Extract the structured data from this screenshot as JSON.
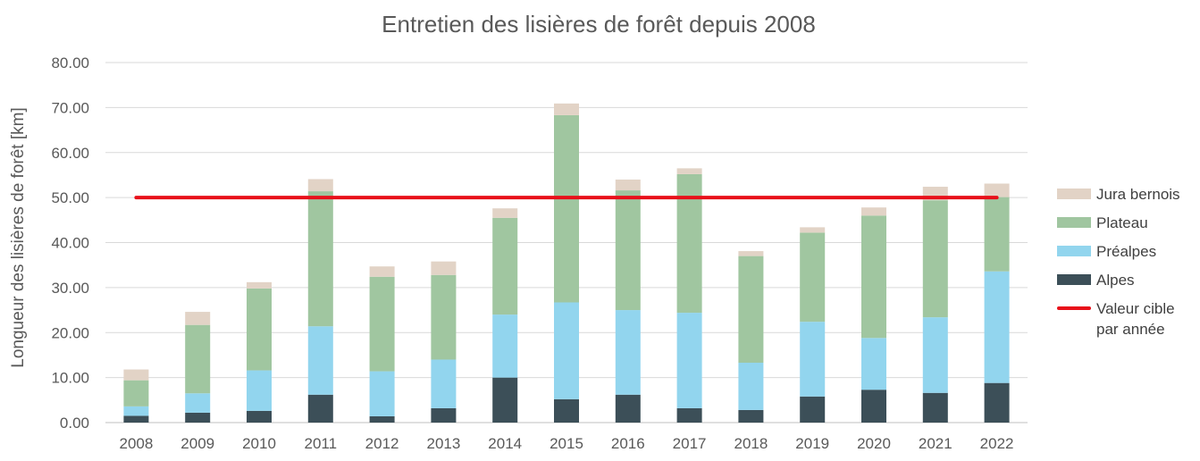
{
  "chart_data": {
    "type": "bar",
    "stacked": true,
    "title": "Entretien des lisières de forêt depuis 2008",
    "xlabel": "",
    "ylabel": "Longueur des lisières de forêt [km]",
    "ylim": [
      0,
      80
    ],
    "yticks": [
      "0.00",
      "10.00",
      "20.00",
      "30.00",
      "40.00",
      "50.00",
      "60.00",
      "70.00",
      "80.00"
    ],
    "categories": [
      "2008",
      "2009",
      "2010",
      "2011",
      "2012",
      "2013",
      "2014",
      "2015",
      "2016",
      "2017",
      "2018",
      "2019",
      "2020",
      "2021",
      "2022"
    ],
    "series": [
      {
        "name": "Alpes",
        "color": "#3c4f58",
        "values": [
          1.5,
          2.2,
          2.6,
          6.2,
          1.4,
          3.2,
          10.0,
          5.2,
          6.2,
          3.2,
          2.8,
          5.8,
          7.3,
          6.6,
          8.8
        ]
      },
      {
        "name": "Préalpes",
        "color": "#92d5ee",
        "values": [
          2.1,
          4.3,
          9.0,
          15.2,
          10.0,
          10.8,
          14.0,
          21.5,
          18.8,
          21.2,
          10.5,
          16.6,
          11.5,
          16.8,
          24.8
        ]
      },
      {
        "name": "Plateau",
        "color": "#a0c6a0",
        "values": [
          5.8,
          15.2,
          18.2,
          30.0,
          21.0,
          18.8,
          21.5,
          41.6,
          26.6,
          30.8,
          23.7,
          19.8,
          27.2,
          26.0,
          16.5
        ]
      },
      {
        "name": "Jura bernois",
        "color": "#e2d3c6",
        "values": [
          2.4,
          2.9,
          1.4,
          2.7,
          2.3,
          3.0,
          2.1,
          2.6,
          2.4,
          1.3,
          1.1,
          1.2,
          1.8,
          3.0,
          3.0
        ]
      }
    ],
    "target": {
      "name": "Valeur cible par année",
      "value": 50,
      "color": "#e8101a"
    },
    "grid": true,
    "legend_position": "right"
  }
}
